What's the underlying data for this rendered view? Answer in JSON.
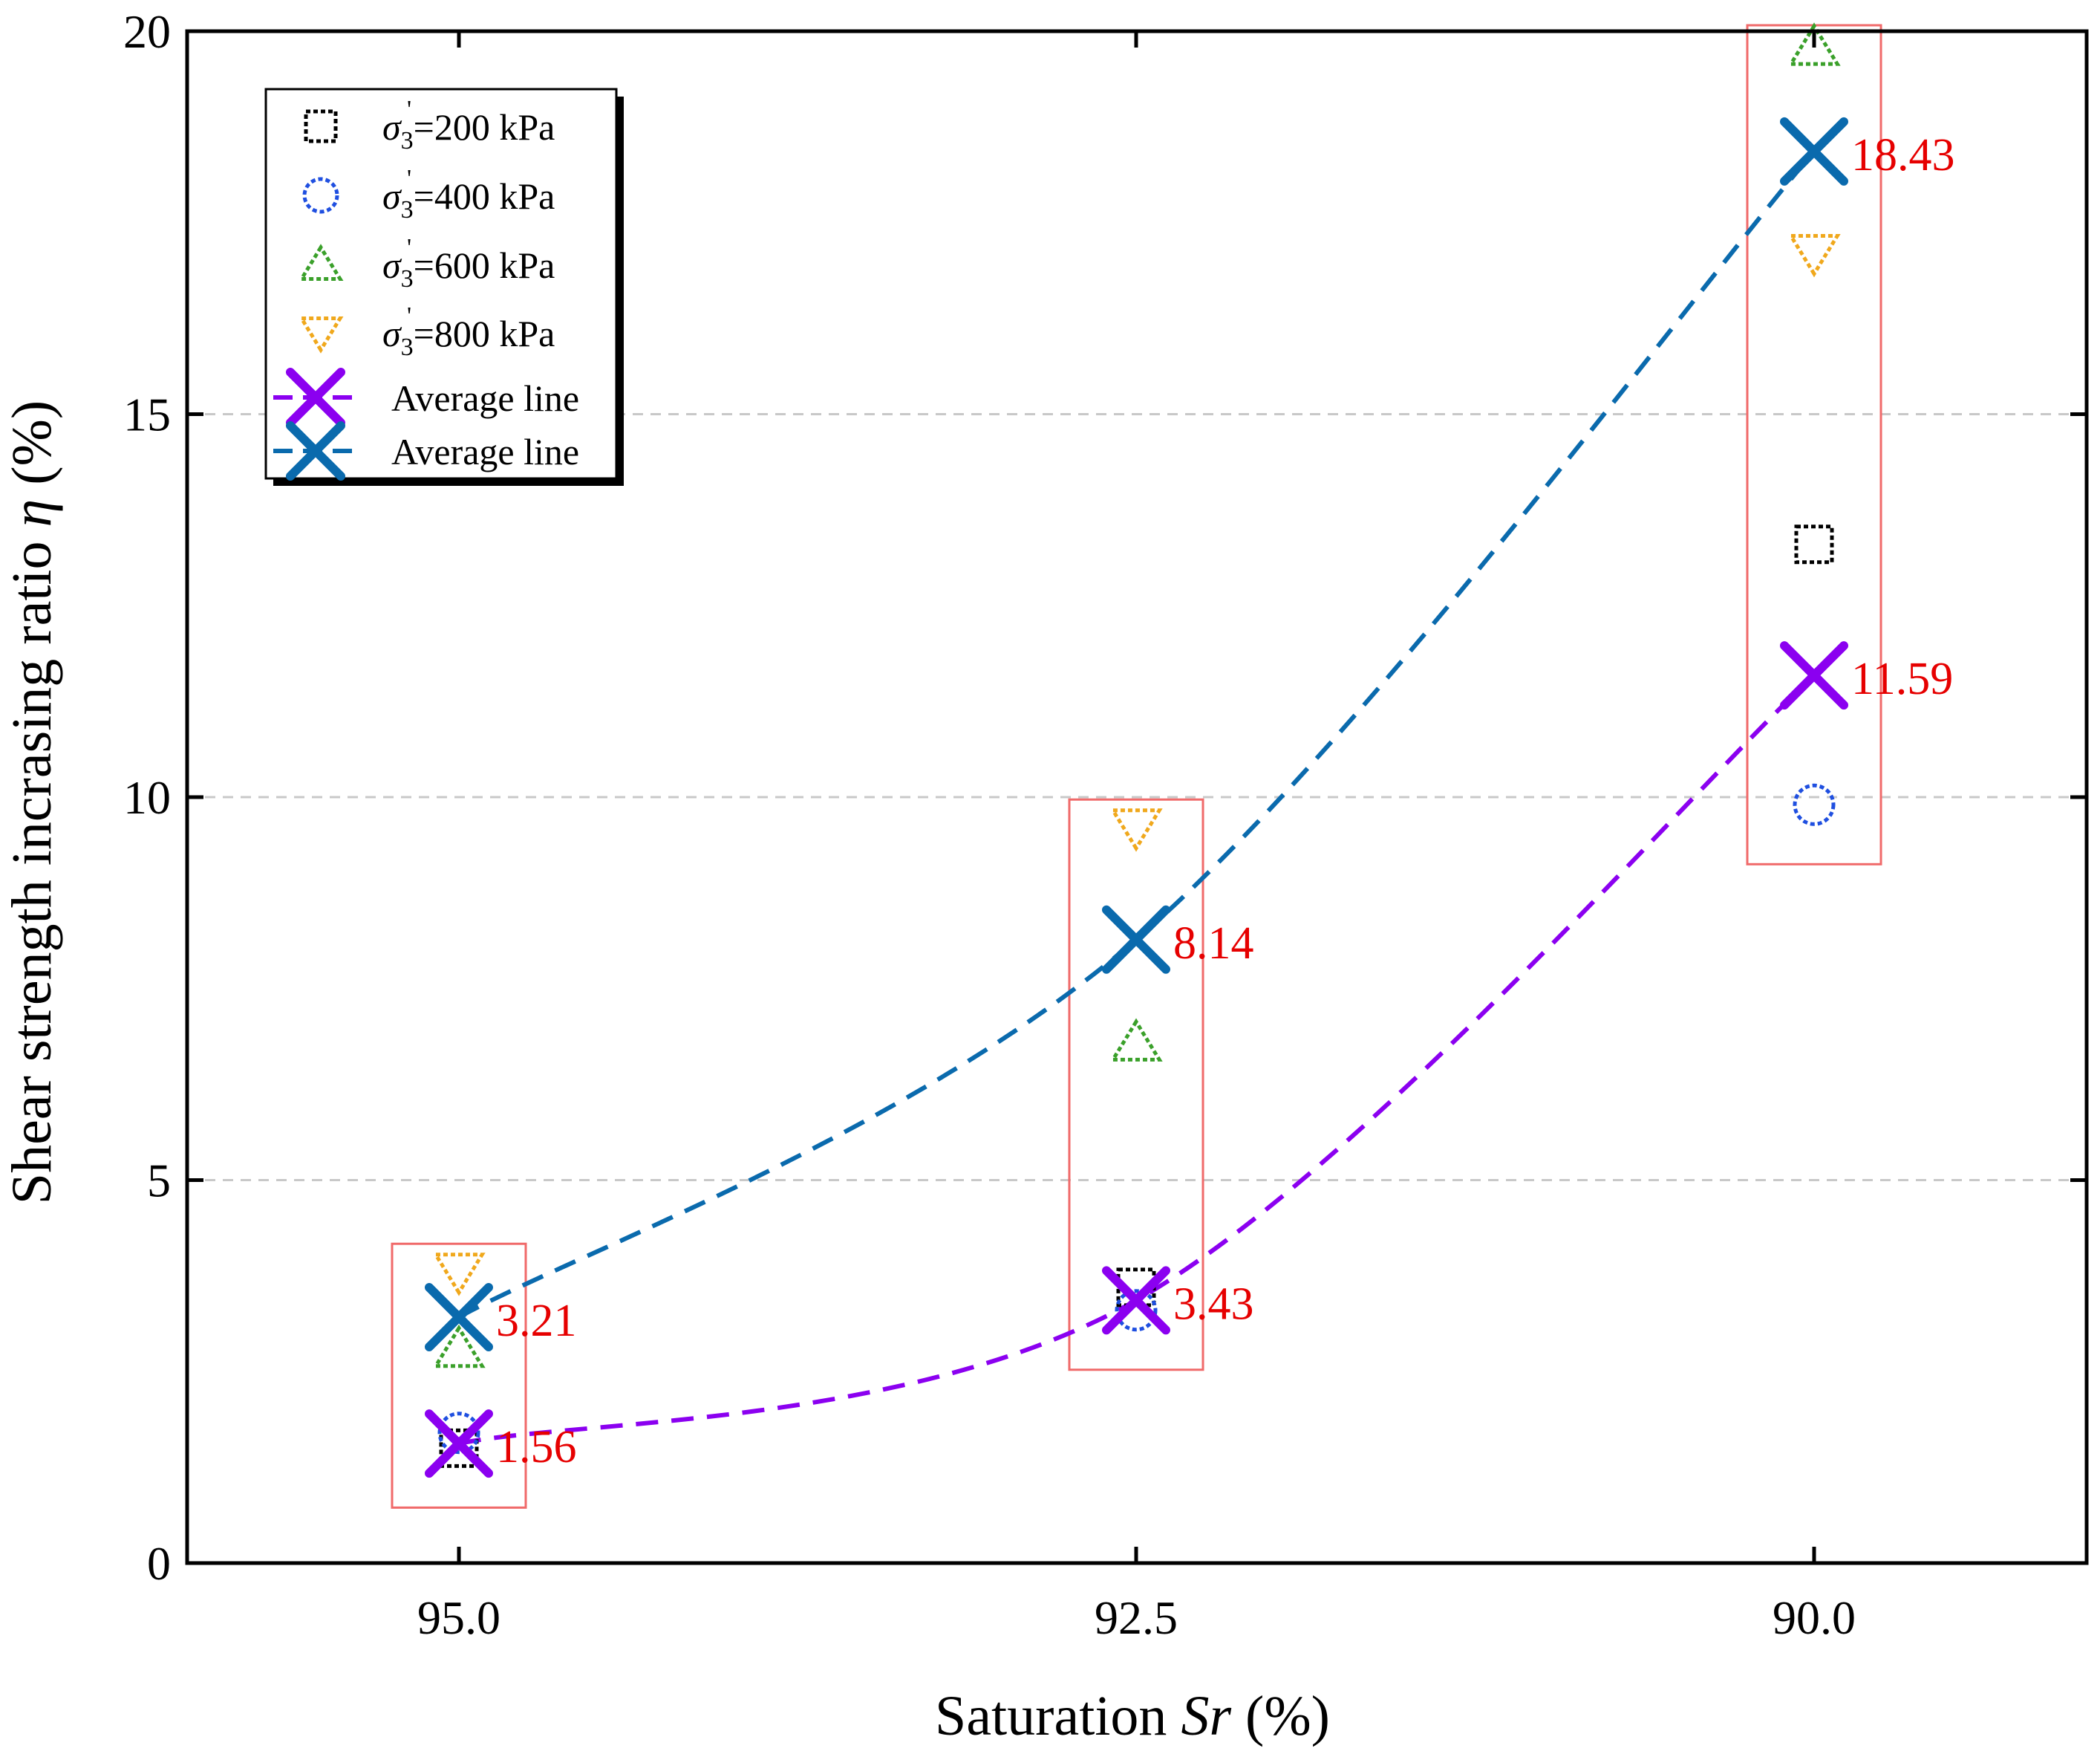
{
  "chart_data": {
    "type": "scatter",
    "title": "",
    "xlabel_text": "Saturation ",
    "xlabel_italic": "Sr",
    "xlabel_unit": " (%)",
    "ylabel_text": "Shear strength incrasing ratio ",
    "ylabel_italic": "η",
    "ylabel_unit": " (%)",
    "categories": [
      "95.0",
      "92.5",
      "90.0"
    ],
    "ylim": [
      0,
      20
    ],
    "yticks": [
      "0",
      "5",
      "10",
      "15",
      "20"
    ],
    "grid": "horizontal dashed",
    "legend_position": "top-left",
    "series": [
      {
        "name": "σ3'=200 kPa",
        "label_prefix": "σ",
        "label_sub": "3",
        "label_rest": "=200 kPa",
        "marker": "square",
        "color": "#000000",
        "values": [
          1.5,
          3.6,
          13.3
        ]
      },
      {
        "name": "σ3'=400 kPa",
        "label_prefix": "σ",
        "label_sub": "3",
        "label_rest": "=400 kPa",
        "marker": "circle",
        "color": "#1f4fe0",
        "values": [
          1.7,
          3.3,
          9.9
        ]
      },
      {
        "name": "σ3'=600 kPa",
        "label_prefix": "σ",
        "label_sub": "3",
        "label_rest": "=600 kPa",
        "marker": "triangle-up",
        "color": "#3aa02a",
        "values": [
          2.8,
          6.8,
          19.8
        ]
      },
      {
        "name": "σ3'=800 kPa",
        "label_prefix": "σ",
        "label_sub": "3",
        "label_rest": "=800 kPa",
        "marker": "triangle-down",
        "color": "#f0a81c",
        "values": [
          3.8,
          9.6,
          17.1
        ]
      }
    ],
    "average_lines": [
      {
        "name": "Average line",
        "color": "#8b00f0",
        "values": [
          1.56,
          3.43,
          11.59
        ],
        "labels": [
          "1.56",
          "3.43",
          "11.59"
        ]
      },
      {
        "name": "Average line",
        "color": "#0a6aad",
        "values": [
          3.21,
          8.14,
          18.43
        ],
        "labels": [
          "3.21",
          "8.14",
          "18.43"
        ]
      }
    ],
    "highlight_color": "#f06a6a",
    "label_color": "#e60000"
  }
}
